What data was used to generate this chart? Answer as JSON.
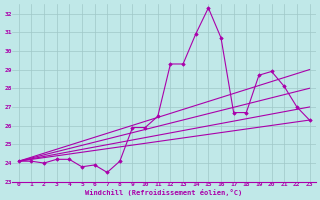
{
  "xlabel": "Windchill (Refroidissement éolien,°C)",
  "bg_color": "#c0e8e8",
  "grid_color": "#a0c8c8",
  "line_color": "#aa00aa",
  "xlim": [
    -0.5,
    23.5
  ],
  "ylim": [
    23,
    32.5
  ],
  "xticks": [
    0,
    1,
    2,
    3,
    4,
    5,
    6,
    7,
    8,
    9,
    10,
    11,
    12,
    13,
    14,
    15,
    16,
    17,
    18,
    19,
    20,
    21,
    22,
    23
  ],
  "yticks": [
    23,
    24,
    25,
    26,
    27,
    28,
    29,
    30,
    31,
    32
  ],
  "line1_x": [
    0,
    1,
    2,
    3,
    4,
    5,
    6,
    7,
    8,
    9,
    10,
    11,
    12,
    13,
    14,
    15,
    16,
    17,
    18,
    19,
    20,
    21,
    22,
    23
  ],
  "line1_y": [
    24.1,
    24.1,
    24.0,
    24.2,
    24.2,
    23.8,
    23.9,
    23.5,
    24.1,
    25.9,
    25.9,
    26.5,
    29.3,
    29.3,
    30.9,
    32.3,
    30.7,
    26.7,
    26.7,
    28.7,
    28.9,
    28.1,
    27.0,
    26.3
  ],
  "line2_x": [
    0,
    23
  ],
  "line2_y": [
    24.1,
    29.0
  ],
  "line3_x": [
    0,
    23
  ],
  "line3_y": [
    24.1,
    28.0
  ],
  "line4_x": [
    0,
    23
  ],
  "line4_y": [
    24.1,
    27.0
  ],
  "line5_x": [
    0,
    23
  ],
  "line5_y": [
    24.1,
    26.3
  ],
  "linewidth": 0.8,
  "markersize": 1.8
}
